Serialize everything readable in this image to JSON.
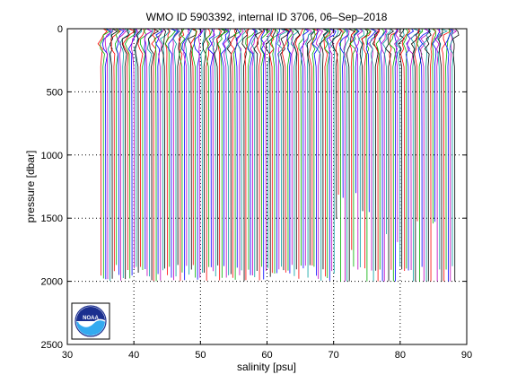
{
  "chart_data": {
    "type": "line",
    "title": "WMO ID 5903392, internal ID 3706, 06–Sep–2018",
    "xlabel": "salinity [psu]",
    "ylabel": "pressure [dbar]",
    "xlim": [
      30,
      90
    ],
    "ylim": [
      2500,
      0
    ],
    "y_reversed": true,
    "xticks": [
      "30",
      "40",
      "50",
      "60",
      "70",
      "80",
      "90"
    ],
    "yticks": [
      "0",
      "500",
      "1000",
      "1500",
      "2000",
      "2500"
    ],
    "grid": "dotted",
    "profile_count": 162,
    "profile_x_offset_start": 35.0,
    "profile_x_offset_step": 0.33,
    "series_colors": [
      "#ff0000",
      "#00b000",
      "#0000ff",
      "#c000c0",
      "#00a0a0",
      "#000000"
    ],
    "profile_shape": {
      "pressure": [
        0,
        20,
        50,
        80,
        120,
        160,
        200,
        300,
        400,
        600,
        800,
        1000,
        1200,
        1400,
        1600,
        1800,
        2000
      ],
      "salinity_anomaly": [
        0.3,
        0.55,
        0.25,
        0.0,
        -0.1,
        -0.05,
        0.0,
        0.02,
        0.04,
        0.05,
        0.06,
        0.06,
        0.065,
        0.065,
        0.07,
        0.07,
        0.07
      ]
    },
    "max_pressure_range": [
      1870,
      2000
    ]
  },
  "logo": {
    "text": "NOAA",
    "colors": {
      "top": "#1b2f8f",
      "bottom": "#33aaf0",
      "ring": "#ffffff"
    }
  }
}
